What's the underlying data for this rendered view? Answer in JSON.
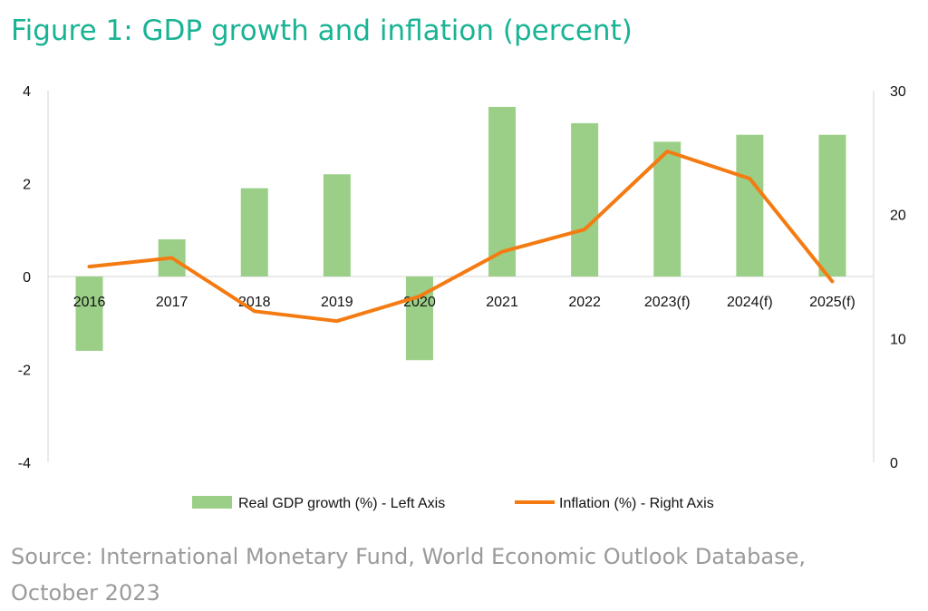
{
  "chart_data": {
    "type": "bar+line",
    "title": "Figure 1: GDP growth and inflation (percent)",
    "categories": [
      "2016",
      "2017",
      "2018",
      "2019",
      "2020",
      "2021",
      "2022",
      "2023(f)",
      "2024(f)",
      "2025(f)"
    ],
    "series": [
      {
        "name": "Real GDP growth (%) - Left Axis",
        "type": "bar",
        "axis": "left",
        "color": "#9bcf87",
        "values": [
          -1.6,
          0.8,
          1.9,
          2.2,
          -1.8,
          3.65,
          3.3,
          2.9,
          3.05,
          3.05
        ]
      },
      {
        "name": "Inflation (%) - Right Axis",
        "type": "line",
        "axis": "right",
        "color": "#f47b12",
        "values": [
          15.8,
          16.5,
          12.2,
          11.4,
          13.4,
          17.0,
          18.8,
          25.1,
          22.9,
          14.6
        ]
      }
    ],
    "y_left": {
      "range": [
        -4,
        4
      ],
      "ticks": [
        "4",
        "2",
        "0",
        "-2",
        "-4"
      ]
    },
    "y_right": {
      "range": [
        0,
        30
      ],
      "ticks": [
        "30",
        "20",
        "10",
        "0"
      ]
    },
    "grid": false,
    "legend": "bottom"
  },
  "source": "Source: International Monetary Fund, World Economic Outlook Database, October 2023"
}
